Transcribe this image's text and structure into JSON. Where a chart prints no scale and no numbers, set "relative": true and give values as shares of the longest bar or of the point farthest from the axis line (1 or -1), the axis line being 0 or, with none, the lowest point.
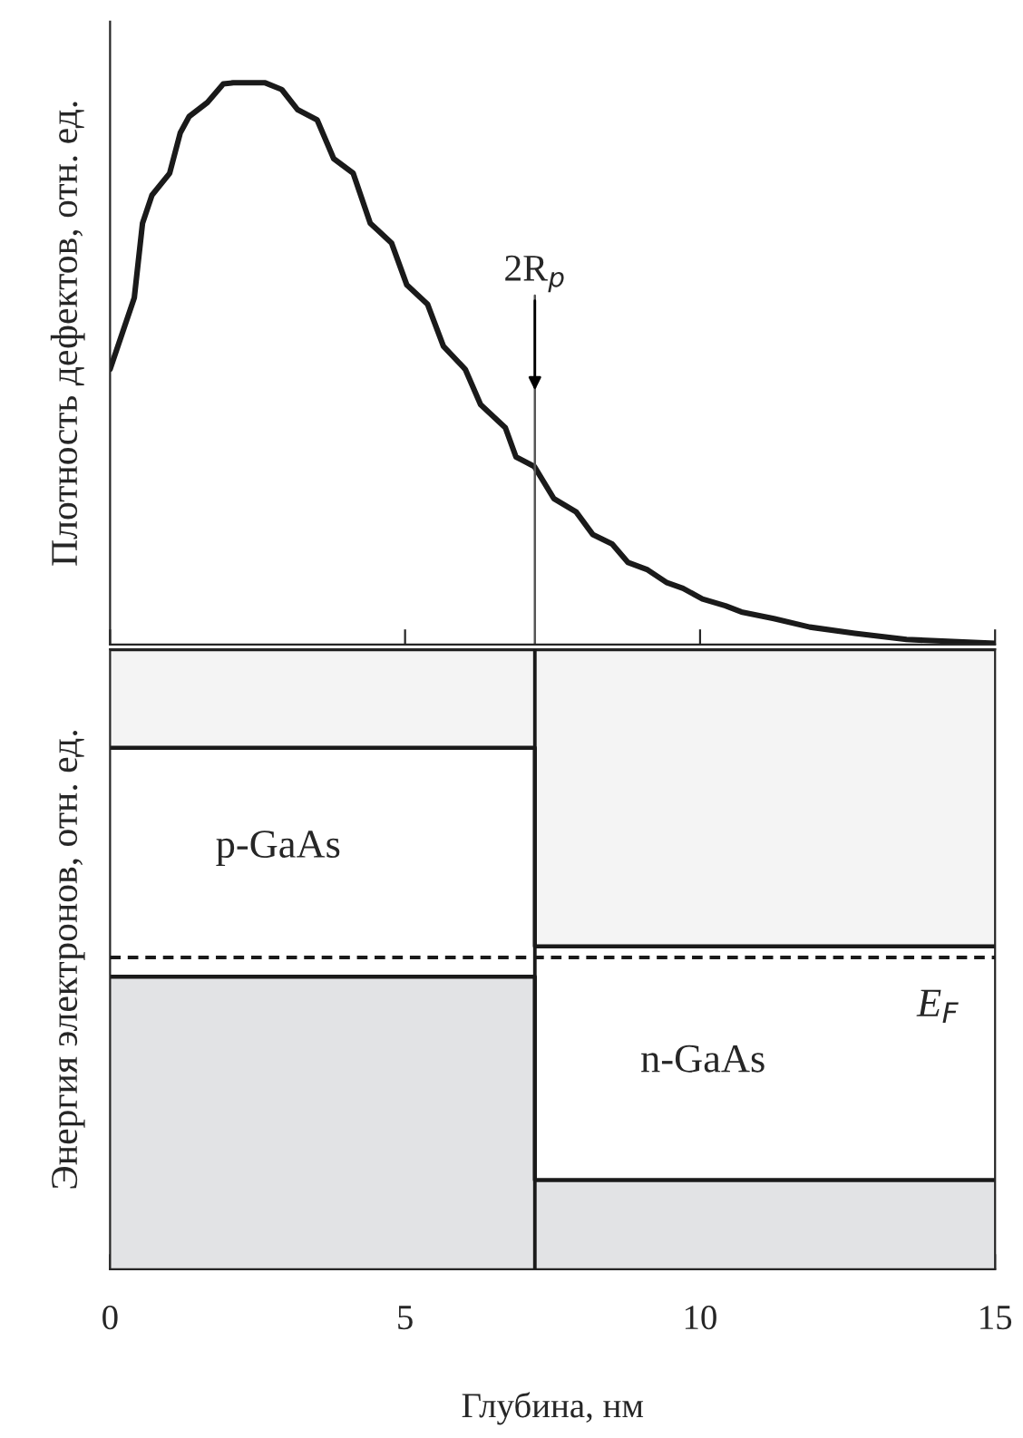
{
  "chart_data": [
    {
      "type": "line",
      "relative": true,
      "ylabel": "Плотность дефектов, отн. ед.",
      "xlim": [
        0,
        15
      ],
      "xticks": [
        0,
        5,
        10,
        15
      ],
      "tick_labels": false,
      "series": [
        {
          "color": "#1a1a1a",
          "x": [
            0,
            0.41,
            0.55,
            0.71,
            1.01,
            1.19,
            1.34,
            1.65,
            1.92,
            2.09,
            2.63,
            2.91,
            3.18,
            3.51,
            3.79,
            4.12,
            4.41,
            4.77,
            5.03,
            5.38,
            5.65,
            6.02,
            6.28,
            6.7,
            6.88,
            7.19,
            7.52,
            7.9,
            8.18,
            8.51,
            8.78,
            9.11,
            9.44,
            9.71,
            10.04,
            10.43,
            10.7,
            11.25,
            11.86,
            12.62,
            13.5,
            15
          ],
          "values": [
            0.49,
            0.617,
            0.75,
            0.8,
            0.839,
            0.911,
            0.94,
            0.965,
            0.998,
            1.0,
            1.0,
            0.988,
            0.952,
            0.934,
            0.865,
            0.839,
            0.75,
            0.715,
            0.64,
            0.606,
            0.531,
            0.49,
            0.427,
            0.386,
            0.334,
            0.317,
            0.26,
            0.236,
            0.196,
            0.179,
            0.146,
            0.133,
            0.11,
            0.1,
            0.081,
            0.069,
            0.058,
            0.046,
            0.031,
            0.02,
            0.009,
            0.002
          ]
        }
      ],
      "ref_lines": [
        {
          "axis": "x",
          "value": 7.2,
          "label": "2R$_{p}$",
          "color": "#555555"
        }
      ]
    },
    {
      "type": "area",
      "stacked": true,
      "relative": true,
      "xlabel": "Глубина, нм",
      "ylabel": "Энергия электронов, отн. ед.",
      "xlim": [
        0,
        15
      ],
      "xticks": [
        0,
        5,
        10,
        15
      ],
      "tick_labels": "x",
      "series": [
        {
          "color": "#e2e3e5",
          "x": [
            0,
            7.2,
            7.2,
            15
          ],
          "values": [
            0.472,
            0.472,
            0.144,
            0.144
          ]
        },
        {
          "color": "#ffffff",
          "x": [
            0,
            7.2,
            7.2,
            15
          ],
          "values": [
            0.369,
            0.369,
            0.377,
            0.377
          ]
        },
        {
          "color": "#f4f4f4",
          "x": [
            0,
            7.2,
            7.2,
            15
          ],
          "values": [
            0.159,
            0.159,
            0.479,
            0.479
          ]
        }
      ],
      "ref_lines": [
        {
          "axis": "x",
          "value": 7.2,
          "color": "#1a1a1a"
        },
        {
          "axis": "y",
          "value": 0.503,
          "label": "E$_{F}$",
          "line_style": "dashed",
          "color": "#1a1a1a"
        }
      ],
      "annotations": [
        "p-GaAs",
        "n-GaAs"
      ]
    }
  ]
}
